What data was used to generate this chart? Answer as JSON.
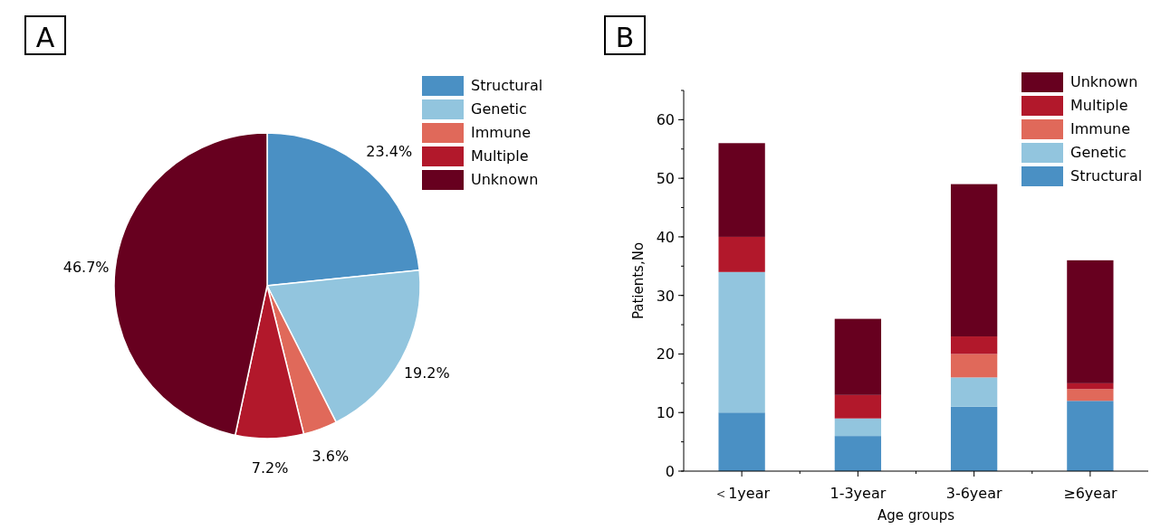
{
  "chart_data": [
    {
      "type": "pie",
      "title": "A",
      "categories": [
        "Structural",
        "Genetic",
        "Immune",
        "Multiple",
        "Unknown"
      ],
      "values": [
        23.4,
        19.2,
        3.6,
        7.2,
        46.7
      ],
      "colors": [
        "#4a90c4",
        "#92c5de",
        "#e0695a",
        "#b2182b",
        "#67001f"
      ],
      "value_labels": [
        "23.4%",
        "19.2%",
        "3.6%",
        "7.2%",
        "46.7%"
      ],
      "legend": "top right"
    },
    {
      "type": "bar",
      "title": "B",
      "stacked": true,
      "xlabel": "Age groups",
      "ylabel": "Patients,No",
      "categories": [
        "＜1year",
        "1-3year",
        "3-6year",
        "≥6year"
      ],
      "ylim": [
        0,
        65
      ],
      "yticks": [
        0,
        10,
        20,
        30,
        40,
        50,
        60
      ],
      "legend": "top right",
      "series": [
        {
          "name": "Structural",
          "color": "#4a90c4",
          "values": [
            10,
            6,
            11,
            12
          ]
        },
        {
          "name": "Genetic",
          "color": "#92c5de",
          "values": [
            24,
            3,
            5,
            0
          ]
        },
        {
          "name": "Immune",
          "color": "#e0695a",
          "values": [
            0,
            0,
            4,
            2
          ]
        },
        {
          "name": "Multiple",
          "color": "#b2182b",
          "values": [
            6,
            4,
            3,
            1
          ]
        },
        {
          "name": "Unknown",
          "color": "#67001f",
          "values": [
            16,
            13,
            26,
            21
          ]
        }
      ]
    }
  ]
}
